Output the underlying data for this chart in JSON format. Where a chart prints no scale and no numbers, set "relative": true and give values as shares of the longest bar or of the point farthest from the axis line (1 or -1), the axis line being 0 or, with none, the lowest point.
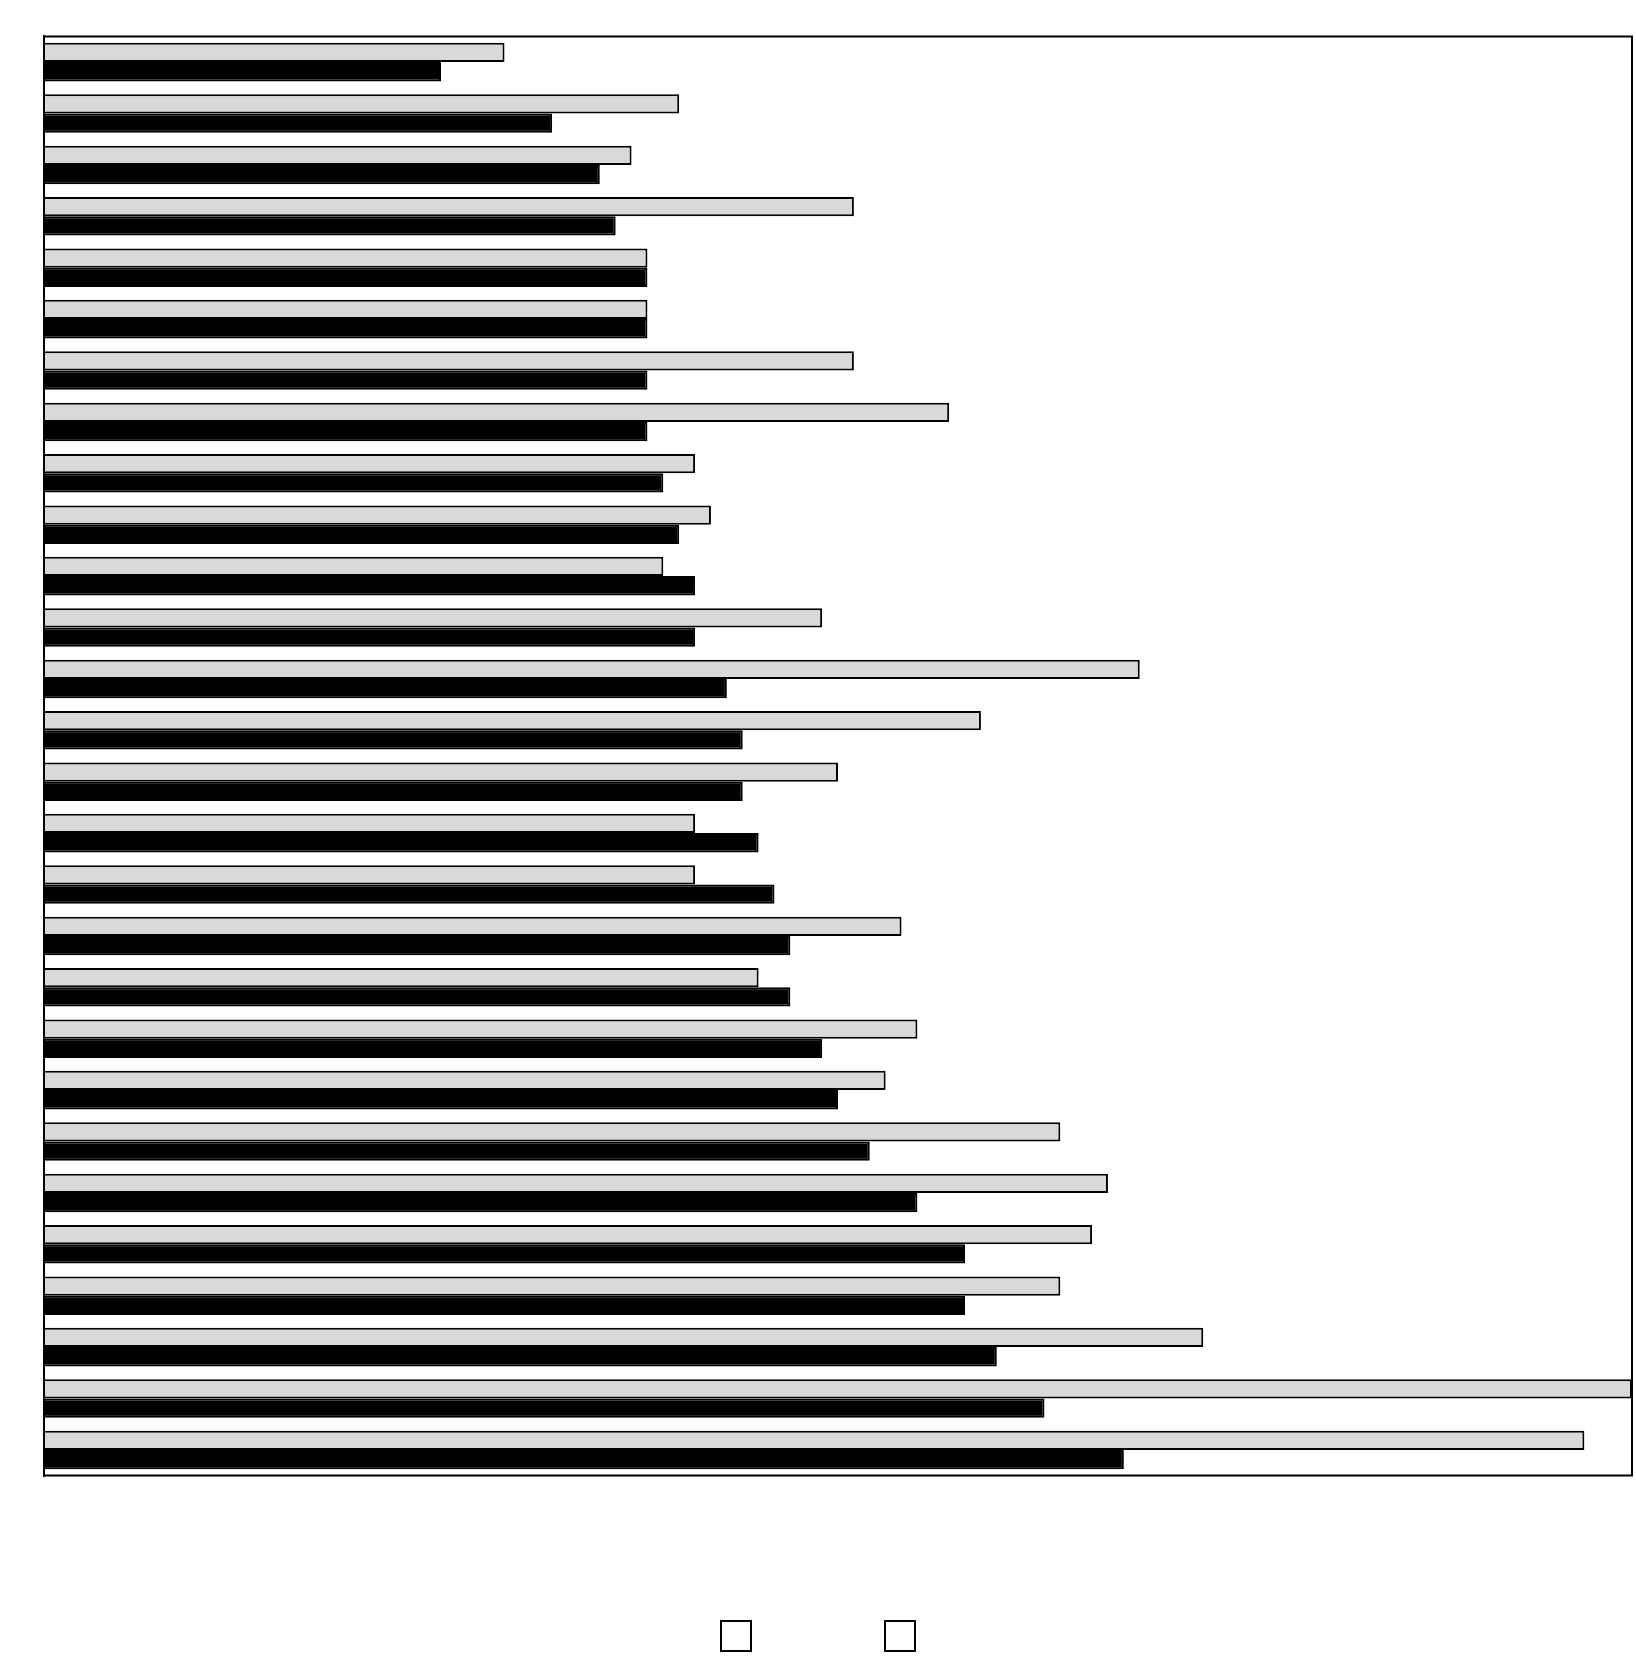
{
  "chart_data": {
    "type": "bar",
    "orientation": "horizontal",
    "relative": true,
    "categories": [
      null,
      null,
      null,
      null,
      null,
      null,
      null,
      null,
      null,
      null,
      null,
      null,
      null,
      null,
      null,
      null,
      null,
      null,
      null,
      null,
      null,
      null,
      null,
      null,
      null,
      null,
      null,
      null
    ],
    "series": [
      {
        "color": "#d9d9d9",
        "values": [
          0.29,
          0.4,
          0.37,
          0.51,
          0.38,
          0.38,
          0.51,
          0.57,
          0.41,
          0.42,
          0.39,
          0.49,
          0.69,
          0.59,
          0.5,
          0.41,
          0.41,
          0.54,
          0.45,
          0.55,
          0.53,
          0.64,
          0.67,
          0.66,
          0.64,
          0.73,
          1,
          0.97
        ]
      },
      {
        "color": "#000000",
        "values": [
          0.25,
          0.32,
          0.35,
          0.36,
          0.38,
          0.38,
          0.38,
          0.38,
          0.39,
          0.4,
          0.41,
          0.41,
          0.43,
          0.44,
          0.44,
          0.45,
          0.46,
          0.47,
          0.47,
          0.49,
          0.5,
          0.52,
          0.55,
          0.58,
          0.58,
          0.6,
          0.63,
          0.68
        ]
      }
    ]
  }
}
